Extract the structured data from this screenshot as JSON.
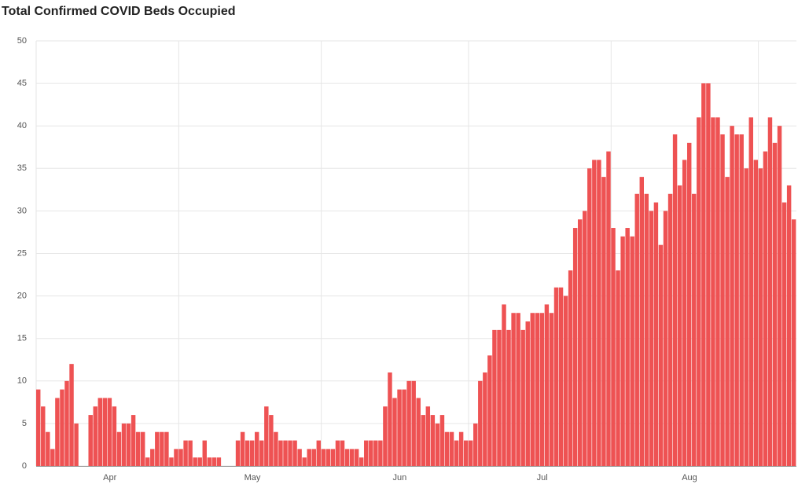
{
  "chart_data": {
    "type": "bar",
    "title": "Total Confirmed COVID Beds Occupied",
    "categories": [
      null,
      null,
      null,
      null,
      null,
      null,
      null,
      null,
      null,
      null,
      null,
      null,
      null,
      null,
      null,
      "Apr",
      null,
      null,
      null,
      null,
      null,
      null,
      null,
      null,
      null,
      null,
      null,
      null,
      null,
      null,
      null,
      null,
      null,
      null,
      null,
      null,
      null,
      null,
      null,
      null,
      null,
      null,
      null,
      null,
      null,
      "May",
      null,
      null,
      null,
      null,
      null,
      null,
      null,
      null,
      null,
      null,
      null,
      null,
      null,
      null,
      null,
      null,
      null,
      null,
      null,
      null,
      null,
      null,
      null,
      null,
      null,
      null,
      null,
      null,
      null,
      null,
      "Jun",
      null,
      null,
      null,
      null,
      null,
      null,
      null,
      null,
      null,
      null,
      null,
      null,
      null,
      null,
      null,
      null,
      null,
      null,
      null,
      null,
      null,
      null,
      null,
      null,
      null,
      null,
      null,
      null,
      null,
      "Jul",
      null,
      null,
      null,
      null,
      null,
      null,
      null,
      null,
      null,
      null,
      null,
      null,
      null,
      null,
      null,
      null,
      null,
      null,
      null,
      null,
      null,
      null,
      null,
      null,
      null,
      null,
      null,
      null,
      null,
      null,
      "Aug",
      null,
      null,
      null,
      null,
      null,
      null,
      null,
      null,
      null,
      null,
      null,
      null,
      null,
      null,
      null,
      null,
      null,
      null,
      null,
      null,
      null,
      null
    ],
    "values": [
      9,
      7,
      4,
      2,
      8,
      9,
      10,
      12,
      5,
      0,
      0,
      6,
      7,
      8,
      8,
      8,
      7,
      4,
      5,
      5,
      6,
      4,
      4,
      1,
      2,
      4,
      4,
      4,
      1,
      2,
      2,
      3,
      3,
      1,
      1,
      3,
      1,
      1,
      1,
      0,
      0,
      0,
      3,
      4,
      3,
      3,
      4,
      3,
      7,
      6,
      4,
      3,
      3,
      3,
      3,
      2,
      1,
      2,
      2,
      3,
      2,
      2,
      2,
      3,
      3,
      2,
      2,
      2,
      1,
      3,
      3,
      3,
      3,
      7,
      11,
      8,
      9,
      9,
      10,
      10,
      8,
      6,
      7,
      6,
      5,
      6,
      4,
      4,
      3,
      4,
      3,
      3,
      5,
      10,
      11,
      13,
      16,
      16,
      19,
      16,
      18,
      18,
      16,
      17,
      18,
      18,
      18,
      19,
      18,
      21,
      21,
      20,
      23,
      28,
      29,
      30,
      35,
      36,
      36,
      34,
      37,
      28,
      23,
      27,
      28,
      27,
      32,
      34,
      32,
      30,
      31,
      26,
      30,
      32,
      39,
      33,
      36,
      38,
      32,
      41,
      45,
      45,
      41,
      41,
      39,
      34,
      40,
      39,
      39,
      35,
      41,
      36,
      35,
      37,
      41,
      38,
      40,
      31,
      33,
      29
    ],
    "color": "#ee5253",
    "ylim": [
      0,
      50
    ],
    "yticks": [
      0,
      5,
      10,
      15,
      20,
      25,
      30,
      35,
      40,
      45,
      50
    ],
    "grid": true
  }
}
